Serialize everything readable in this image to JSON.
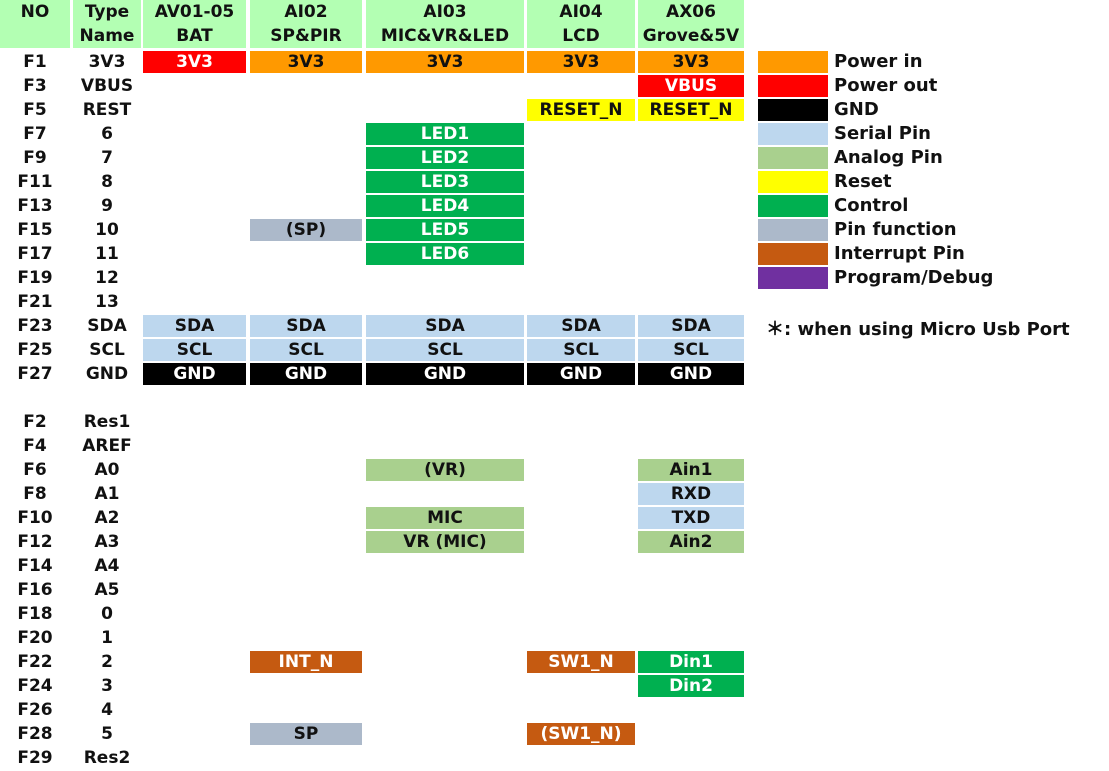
{
  "headers": [
    {
      "line1": "NO",
      "line2": ""
    },
    {
      "line1": "Type",
      "line2": "Name"
    },
    {
      "line1": "AV01-05",
      "line2": "BAT"
    },
    {
      "line1": "AI02",
      "line2": "SP&PIR"
    },
    {
      "line1": "AI03",
      "line2": "MIC&VR&LED"
    },
    {
      "line1": "AI04",
      "line2": "LCD"
    },
    {
      "line1": "AX06",
      "line2": "Grove&5V"
    }
  ],
  "colors": {
    "power_in": "#ff9900",
    "power_out": "#ff0000",
    "gnd": "#000000",
    "serial": "#bdd7ee",
    "analog": "#a9d08e",
    "reset": "#ffff00",
    "control": "#00b050",
    "pin_function": "#acb9ca",
    "interrupt": "#c55a11",
    "program": "#7030a0",
    "header": "#b3ffb3"
  },
  "rows": [
    {
      "no": "F1",
      "name": "3V3",
      "cells": [
        {
          "text": "3V3",
          "type": "power_out"
        },
        {
          "text": "3V3",
          "type": "power_in"
        },
        {
          "text": "3V3",
          "type": "power_in"
        },
        {
          "text": "3V3",
          "type": "power_in"
        },
        {
          "text": "3V3",
          "type": "power_in"
        }
      ]
    },
    {
      "no": "F3",
      "name": "VBUS",
      "cells": [
        null,
        null,
        null,
        null,
        {
          "text": "VBUS",
          "type": "power_out"
        }
      ]
    },
    {
      "no": "F5",
      "name": "REST",
      "cells": [
        null,
        null,
        null,
        {
          "text": "RESET_N",
          "type": "reset"
        },
        {
          "text": "RESET_N",
          "type": "reset"
        }
      ]
    },
    {
      "no": "F7",
      "name": "6",
      "cells": [
        null,
        null,
        {
          "text": "LED1",
          "type": "control"
        },
        null,
        null
      ]
    },
    {
      "no": "F9",
      "name": "7",
      "cells": [
        null,
        null,
        {
          "text": "LED2",
          "type": "control"
        },
        null,
        null
      ]
    },
    {
      "no": "F11",
      "name": "8",
      "cells": [
        null,
        null,
        {
          "text": "LED3",
          "type": "control"
        },
        null,
        null
      ]
    },
    {
      "no": "F13",
      "name": "9",
      "cells": [
        null,
        null,
        {
          "text": "LED4",
          "type": "control"
        },
        null,
        null
      ]
    },
    {
      "no": "F15",
      "name": "10",
      "cells": [
        null,
        {
          "text": "(SP)",
          "type": "pin_function"
        },
        {
          "text": "LED5",
          "type": "control"
        },
        null,
        null
      ]
    },
    {
      "no": "F17",
      "name": "11",
      "cells": [
        null,
        null,
        {
          "text": "LED6",
          "type": "control"
        },
        null,
        null
      ]
    },
    {
      "no": "F19",
      "name": "12",
      "cells": [
        null,
        null,
        null,
        null,
        null
      ]
    },
    {
      "no": "F21",
      "name": "13",
      "cells": [
        null,
        null,
        null,
        null,
        null
      ]
    },
    {
      "no": "F23",
      "name": "SDA",
      "cells": [
        {
          "text": "SDA",
          "type": "serial"
        },
        {
          "text": "SDA",
          "type": "serial"
        },
        {
          "text": "SDA",
          "type": "serial"
        },
        {
          "text": "SDA",
          "type": "serial"
        },
        {
          "text": "SDA",
          "type": "serial"
        }
      ]
    },
    {
      "no": "F25",
      "name": "SCL",
      "cells": [
        {
          "text": "SCL",
          "type": "serial"
        },
        {
          "text": "SCL",
          "type": "serial"
        },
        {
          "text": "SCL",
          "type": "serial"
        },
        {
          "text": "SCL",
          "type": "serial"
        },
        {
          "text": "SCL",
          "type": "serial"
        }
      ]
    },
    {
      "no": "F27",
      "name": "GND",
      "cells": [
        {
          "text": "GND",
          "type": "gnd"
        },
        {
          "text": "GND",
          "type": "gnd"
        },
        {
          "text": "GND",
          "type": "gnd"
        },
        {
          "text": "GND",
          "type": "gnd"
        },
        {
          "text": "GND",
          "type": "gnd"
        }
      ]
    },
    null,
    {
      "no": "F2",
      "name": "Res1",
      "cells": [
        null,
        null,
        null,
        null,
        null
      ]
    },
    {
      "no": "F4",
      "name": "AREF",
      "cells": [
        null,
        null,
        null,
        null,
        null
      ]
    },
    {
      "no": "F6",
      "name": "A0",
      "cells": [
        null,
        null,
        {
          "text": "(VR)",
          "type": "analog"
        },
        null,
        {
          "text": "Ain1",
          "type": "analog"
        }
      ]
    },
    {
      "no": "F8",
      "name": "A1",
      "cells": [
        null,
        null,
        null,
        null,
        {
          "text": "RXD",
          "type": "serial"
        }
      ]
    },
    {
      "no": "F10",
      "name": "A2",
      "cells": [
        null,
        null,
        {
          "text": "MIC",
          "type": "analog"
        },
        null,
        {
          "text": "TXD",
          "type": "serial"
        }
      ]
    },
    {
      "no": "F12",
      "name": "A3",
      "cells": [
        null,
        null,
        {
          "text": "VR (MIC)",
          "type": "analog"
        },
        null,
        {
          "text": "Ain2",
          "type": "analog"
        }
      ]
    },
    {
      "no": "F14",
      "name": "A4",
      "cells": [
        null,
        null,
        null,
        null,
        null
      ]
    },
    {
      "no": "F16",
      "name": "A5",
      "cells": [
        null,
        null,
        null,
        null,
        null
      ]
    },
    {
      "no": "F18",
      "name": "0",
      "cells": [
        null,
        null,
        null,
        null,
        null
      ]
    },
    {
      "no": "F20",
      "name": "1",
      "cells": [
        null,
        null,
        null,
        null,
        null
      ]
    },
    {
      "no": "F22",
      "name": "2",
      "cells": [
        null,
        {
          "text": "INT_N",
          "type": "interrupt"
        },
        null,
        {
          "text": "SW1_N",
          "type": "interrupt"
        },
        {
          "text": "Din1",
          "type": "control"
        }
      ]
    },
    {
      "no": "F24",
      "name": "3",
      "cells": [
        null,
        null,
        null,
        null,
        {
          "text": "Din2",
          "type": "control"
        }
      ]
    },
    {
      "no": "F26",
      "name": "4",
      "cells": [
        null,
        null,
        null,
        null,
        null
      ]
    },
    {
      "no": "F28",
      "name": "5",
      "cells": [
        null,
        {
          "text": "SP",
          "type": "pin_function"
        },
        null,
        {
          "text": "(SW1_N)",
          "type": "interrupt"
        },
        null
      ]
    },
    {
      "no": "F29",
      "name": "Res2",
      "cells": [
        null,
        null,
        null,
        null,
        null
      ]
    }
  ],
  "legend": [
    {
      "label": "Power in",
      "type": "power_in"
    },
    {
      "label": "Power out",
      "type": "power_out"
    },
    {
      "label": "GND",
      "type": "gnd"
    },
    {
      "label": "Serial Pin",
      "type": "serial"
    },
    {
      "label": "Analog Pin",
      "type": "analog"
    },
    {
      "label": "Reset",
      "type": "reset"
    },
    {
      "label": "Control",
      "type": "control"
    },
    {
      "label": "Pin function",
      "type": "pin_function"
    },
    {
      "label": "Interrupt Pin",
      "type": "interrupt"
    },
    {
      "label": "Program/Debug",
      "type": "program"
    }
  ],
  "note": "＊: when using Micro Usb Port"
}
